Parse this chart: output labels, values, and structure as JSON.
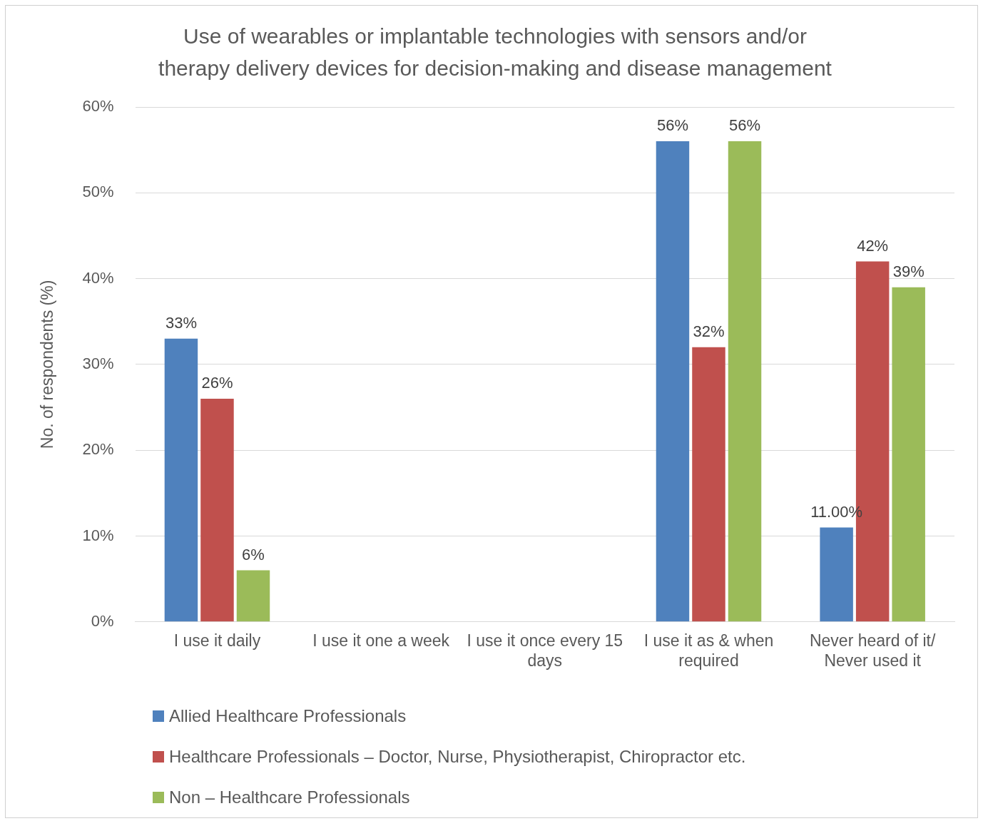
{
  "chart_data": {
    "type": "bar",
    "title": "Use of wearables or implantable technologies with sensors and/or\ntherapy delivery devices for decision-making and disease management",
    "ylabel": "No. of respondents (%)",
    "categories": [
      "I use it daily",
      "I use it one a week",
      "I use it once every 15 days",
      "I use it as & when required",
      "Never heard of it/ Never used it"
    ],
    "series": [
      {
        "name": "Allied Healthcare Professionals",
        "color": "#4f81bd",
        "values": [
          33,
          null,
          null,
          56,
          11
        ],
        "value_labels": [
          "33%",
          null,
          null,
          "56%",
          "11.00%"
        ]
      },
      {
        "name": "Healthcare Professionals – Doctor, Nurse, Physiotherapist, Chiropractor etc.",
        "color": "#c0504d",
        "values": [
          26,
          null,
          null,
          32,
          42
        ],
        "value_labels": [
          "26%",
          null,
          null,
          "32%",
          "42%"
        ]
      },
      {
        "name": "Non – Healthcare Professionals",
        "color": "#9bbb59",
        "values": [
          6,
          null,
          null,
          56,
          39
        ],
        "value_labels": [
          "6%",
          null,
          null,
          "56%",
          "39%"
        ]
      }
    ],
    "ylim": [
      0,
      60
    ],
    "yticks": [
      {
        "value": 0,
        "label": "0%"
      },
      {
        "value": 10,
        "label": "10%"
      },
      {
        "value": 20,
        "label": "20%"
      },
      {
        "value": 30,
        "label": "30%"
      },
      {
        "value": 40,
        "label": "40%"
      },
      {
        "value": 50,
        "label": "50%"
      },
      {
        "value": 60,
        "label": "60%"
      }
    ],
    "grid": "y",
    "legend": "bottom left"
  }
}
